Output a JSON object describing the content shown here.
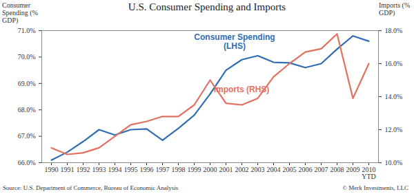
{
  "chart_data": {
    "type": "line",
    "title": "U.S. Consumer Spending and Imports",
    "ylabel": "Consumer Spending (% GDP)",
    "y2label": "Imports (% GDP)",
    "source": "Source: U.S. Department of Commerce, Bureau of Economic Analysis",
    "credit": "© Merk Investments, LLC",
    "categories": [
      "1990",
      "1991",
      "1992",
      "1993",
      "1994",
      "1995",
      "1996",
      "1997",
      "1998",
      "1999",
      "2000",
      "2001",
      "2002",
      "2003",
      "2004",
      "2005",
      "2006",
      "2007",
      "2008",
      "2009",
      "2010 YTD"
    ],
    "series": [
      {
        "name": "Consumer Spending (LHS)",
        "color": "#2e6db4",
        "axis": "y",
        "values": [
          66.1,
          66.4,
          66.8,
          67.25,
          67.05,
          67.25,
          67.28,
          66.85,
          67.3,
          67.8,
          68.6,
          69.5,
          69.9,
          70.05,
          69.8,
          69.78,
          69.6,
          69.75,
          70.3,
          70.8,
          70.6
        ]
      },
      {
        "name": "Imports (RHS)",
        "color": "#e2705f",
        "axis": "y2",
        "values": [
          10.9,
          10.5,
          10.6,
          10.9,
          11.6,
          12.3,
          12.5,
          12.8,
          12.8,
          13.5,
          15.0,
          13.6,
          13.5,
          13.9,
          15.2,
          16.0,
          16.7,
          16.9,
          17.8,
          13.9,
          16.0
        ]
      }
    ],
    "ylim": [
      66,
      71
    ],
    "yticks": [
      {
        "value": 66,
        "label": "66.0%"
      },
      {
        "value": 67,
        "label": "67.0%"
      },
      {
        "value": 68,
        "label": "68.0%"
      },
      {
        "value": 69,
        "label": "69.0%"
      },
      {
        "value": 70,
        "label": "70.0%"
      },
      {
        "value": 71,
        "label": "71.0%"
      }
    ],
    "y2lim": [
      10,
      18
    ],
    "y2ticks": [
      {
        "value": 10,
        "label": "10.0%"
      },
      {
        "value": 12,
        "label": "12.0%"
      },
      {
        "value": 14,
        "label": "14.0%"
      },
      {
        "value": 16,
        "label": "16.0%"
      },
      {
        "value": 18,
        "label": "18.0%"
      }
    ],
    "grid": false
  }
}
